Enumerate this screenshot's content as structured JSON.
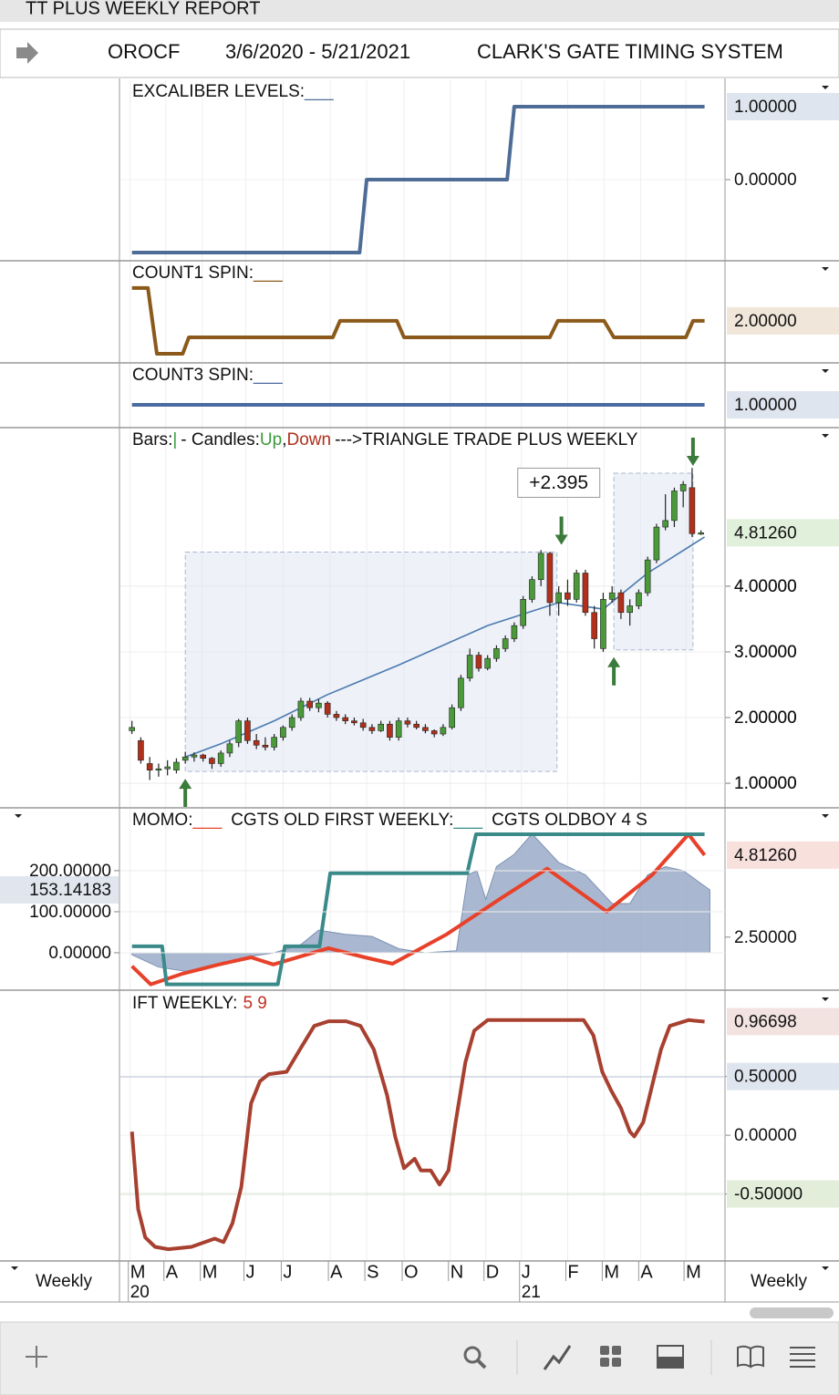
{
  "window_title": "TT PLUS WEEKLY REPORT",
  "header": {
    "symbol": "OROCF",
    "date_range": "3/6/2020 - 5/21/2021",
    "system": "CLARK'S GATE TIMING SYSTEM"
  },
  "time_axis": {
    "period": "Weekly",
    "xlim": [
      -1.3,
      66.7
    ],
    "xticks": [
      {
        "value": -0.2,
        "label": "M"
      },
      {
        "value": 3.8,
        "label": "A"
      },
      {
        "value": 7.9,
        "label": "M"
      },
      {
        "value": 12.8,
        "label": "J"
      },
      {
        "value": 17.0,
        "label": "J"
      },
      {
        "value": 22.3,
        "label": "A"
      },
      {
        "value": 26.4,
        "label": "S"
      },
      {
        "value": 30.6,
        "label": "O"
      },
      {
        "value": 35.8,
        "label": "N"
      },
      {
        "value": 39.8,
        "label": "D"
      },
      {
        "value": 43.8,
        "label": "J"
      },
      {
        "value": 49.0,
        "label": "F"
      },
      {
        "value": 53.1,
        "label": "M"
      },
      {
        "value": 57.2,
        "label": "A"
      },
      {
        "value": 62.3,
        "label": "M"
      }
    ],
    "year_labels": [
      {
        "value": -0.2,
        "label": "20"
      },
      {
        "value": 43.8,
        "label": "21"
      }
    ]
  },
  "chart_data": [
    {
      "type": "line",
      "title": "EXCALIBER LEVELS:",
      "legend_mark": "___",
      "color": "#4e6d96",
      "ylim": [
        -1.1,
        1.3625
      ],
      "yticks": [
        {
          "value": 0,
          "label": "0.00000"
        }
      ],
      "current_value": {
        "value": 1,
        "label": "1.00000"
      },
      "current_color": "#3d5a80",
      "current_bg": "#dfe5ee",
      "series": [
        {
          "name": "EXCALIBER LEVELS",
          "color": "#4e6d96",
          "x": [
            0,
            25.6,
            26.4,
            42.2,
            43.0,
            64.4
          ],
          "values": [
            -1,
            -1,
            0,
            0,
            1,
            1
          ]
        }
      ]
    },
    {
      "type": "line",
      "title": "COUNT1 SPIN:",
      "legend_mark": "___",
      "color": "#8b5a1b",
      "ylim": [
        -0.5,
        5.6
      ],
      "yticks": [],
      "current_value": {
        "value": 2,
        "label": "2.00000"
      },
      "current_color": "#6b4a20",
      "current_bg": "#f1e6da",
      "series": [
        {
          "name": "COUNT1 SPIN",
          "color": "#8b5a1b",
          "x": [
            0,
            1.8,
            2.8,
            5.7,
            6.4,
            22.6,
            23.4,
            29.8,
            30.6,
            47.0,
            47.9,
            53.1,
            54.2,
            62.3,
            63.1,
            64.4
          ],
          "values": [
            4,
            4,
            0,
            0,
            1,
            1,
            2,
            2,
            1,
            1,
            2,
            2,
            1,
            1,
            2,
            2
          ]
        }
      ]
    },
    {
      "type": "line",
      "title": "COUNT3 SPIN:",
      "legend_mark": "___",
      "color": "#4a6aa0",
      "ylim": [
        0.467,
        2.0
      ],
      "yticks": [],
      "current_value": {
        "value": 1,
        "label": "1.00000"
      },
      "current_color": "#3d5a80",
      "current_bg": "#dfe5ee",
      "series": [
        {
          "name": "COUNT3 SPIN",
          "color": "#4a6aa0",
          "x": [
            0,
            64.4
          ],
          "values": [
            1,
            1
          ]
        }
      ]
    },
    {
      "type": "candlestick",
      "title_parts": [
        {
          "text": "Bars:"
        },
        {
          "text": "|",
          "color": "#3a9a3a"
        },
        {
          "text": "- Candles:"
        },
        {
          "text": "Up",
          "color": "#3a9a3a"
        },
        {
          "text": ","
        },
        {
          "text": "Down",
          "color": "#b0301c"
        },
        {
          "text": "--->TRIANGLE TRADE PLUS WEEKLY"
        }
      ],
      "up_color": "#4a9a3a",
      "down_color": "#b0301c",
      "ylim": [
        0.64,
        6.4
      ],
      "yticks": [
        {
          "value": 1,
          "label": "1.00000"
        },
        {
          "value": 2,
          "label": "2.00000"
        },
        {
          "value": 3,
          "label": "3.00000"
        },
        {
          "value": 4,
          "label": "4.00000"
        }
      ],
      "current_value": {
        "value": 4.8126,
        "label": "4.81260"
      },
      "current_color": "#3a7a2a",
      "current_bg": "#e0f0da",
      "x": [
        0,
        1,
        2,
        3,
        4,
        5,
        6,
        7,
        8,
        9,
        10,
        11,
        12,
        13,
        14,
        15,
        16,
        17,
        18,
        19,
        20,
        21,
        22,
        23,
        24,
        25,
        26,
        27,
        28,
        29,
        30,
        31,
        32,
        33,
        34,
        35,
        36,
        37,
        38,
        39,
        40,
        41,
        42,
        43,
        44,
        45,
        46,
        47,
        48,
        49,
        50,
        51,
        52,
        53,
        54,
        55,
        56,
        57,
        58,
        59,
        60,
        61,
        62,
        63,
        64
      ],
      "open": [
        1.8,
        1.65,
        1.3,
        1.2,
        1.22,
        1.2,
        1.35,
        1.4,
        1.43,
        1.38,
        1.3,
        1.46,
        1.62,
        1.95,
        1.65,
        1.58,
        1.55,
        1.7,
        1.85,
        2.0,
        2.25,
        2.15,
        2.22,
        2.05,
        2.0,
        1.95,
        1.92,
        1.85,
        1.8,
        1.9,
        1.7,
        1.95,
        1.9,
        1.85,
        1.8,
        1.75,
        1.85,
        2.15,
        2.6,
        2.95,
        2.75,
        2.9,
        3.05,
        3.2,
        3.4,
        3.8,
        4.1,
        4.5,
        3.75,
        3.9,
        3.8,
        4.2,
        3.6,
        3.05,
        3.8,
        3.9,
        3.6,
        3.7,
        3.9,
        4.4,
        4.9,
        5.0,
        5.45,
        5.5,
        4.8
      ],
      "high": [
        1.95,
        1.7,
        1.4,
        1.3,
        1.35,
        1.38,
        1.48,
        1.47,
        1.45,
        1.4,
        1.5,
        1.65,
        1.98,
        2.0,
        1.75,
        1.7,
        1.75,
        1.88,
        2.05,
        2.3,
        2.3,
        2.28,
        2.25,
        2.1,
        2.05,
        2.0,
        1.98,
        1.9,
        1.95,
        1.95,
        2.0,
        2.0,
        1.95,
        1.9,
        1.82,
        1.9,
        2.2,
        2.65,
        3.05,
        3.0,
        2.95,
        3.1,
        3.25,
        3.45,
        3.85,
        4.15,
        4.55,
        4.52,
        4.0,
        4.1,
        4.25,
        4.25,
        3.7,
        3.9,
        4.0,
        3.95,
        3.8,
        3.95,
        4.45,
        4.95,
        5.4,
        5.5,
        5.6,
        5.8,
        4.85
      ],
      "low": [
        1.75,
        1.3,
        1.05,
        1.1,
        1.12,
        1.15,
        1.3,
        1.33,
        1.33,
        1.22,
        1.25,
        1.4,
        1.55,
        1.6,
        1.52,
        1.5,
        1.5,
        1.65,
        1.8,
        1.95,
        2.1,
        2.08,
        2.0,
        1.95,
        1.9,
        1.88,
        1.8,
        1.75,
        1.78,
        1.65,
        1.65,
        1.85,
        1.82,
        1.76,
        1.7,
        1.72,
        1.82,
        2.1,
        2.55,
        2.7,
        2.72,
        2.85,
        3.0,
        3.15,
        3.35,
        3.75,
        4.0,
        3.55,
        3.55,
        3.7,
        3.75,
        3.55,
        3.05,
        3.0,
        3.75,
        3.5,
        3.4,
        3.65,
        3.85,
        4.35,
        4.85,
        4.9,
        5.2,
        4.75,
        4.78
      ],
      "close": [
        1.85,
        1.35,
        1.2,
        1.22,
        1.25,
        1.32,
        1.4,
        1.43,
        1.38,
        1.3,
        1.46,
        1.6,
        1.95,
        1.65,
        1.58,
        1.55,
        1.7,
        1.85,
        2.0,
        2.25,
        2.15,
        2.22,
        2.05,
        2.0,
        1.95,
        1.92,
        1.85,
        1.8,
        1.9,
        1.7,
        1.95,
        1.9,
        1.85,
        1.8,
        1.75,
        1.85,
        2.15,
        2.6,
        2.95,
        2.75,
        2.9,
        3.05,
        3.2,
        3.4,
        3.8,
        4.1,
        4.5,
        3.75,
        3.9,
        3.8,
        4.2,
        3.6,
        3.2,
        3.8,
        3.9,
        3.6,
        3.7,
        3.9,
        4.4,
        4.9,
        5.0,
        5.45,
        5.55,
        4.8,
        4.8126
      ],
      "moving_average": {
        "color": "#4a7ab0",
        "x": [
          6,
          10,
          16,
          22,
          30,
          40,
          48,
          53,
          58,
          64.4
        ],
        "values": [
          1.4,
          1.6,
          1.95,
          2.35,
          2.8,
          3.4,
          3.75,
          3.65,
          4.2,
          4.75
        ]
      },
      "boxes": [
        {
          "x0": 6.0,
          "x1": 47.8,
          "low": 1.18,
          "high": 4.52
        },
        {
          "x0": 54.2,
          "x1": 63.1,
          "low": 3.03,
          "high": 5.72
        }
      ],
      "annotation": "+2.395",
      "signal_color": "#3a7a3a",
      "signals": [
        {
          "x": 6.0,
          "price": 1.18,
          "direction": "up"
        },
        {
          "x": 48.3,
          "price": 4.52,
          "direction": "down"
        },
        {
          "x": 54.2,
          "price": 3.03,
          "direction": "up"
        },
        {
          "x": 63.1,
          "price": 5.72,
          "direction": "down"
        }
      ]
    },
    {
      "type": "combo",
      "ylim": [
        -89,
        351
      ],
      "yticks": [
        {
          "value": 0,
          "label": "0.00000"
        },
        {
          "value": 100,
          "label": "100.00000"
        },
        {
          "value": 200,
          "label": "200.00000"
        }
      ],
      "current_value_left": 153.14183,
      "y2lim": [
        1.03,
        6.12
      ],
      "y2ticks": [
        {
          "value": 2.5,
          "label": "2.50000"
        }
      ],
      "current_value": {
        "value": 4.8126,
        "label": "4.81260"
      },
      "current_color": "#c03020",
      "current_bg": "#f8e1dd",
      "series": [
        {
          "name": "MOMO:",
          "legend_mark": "___",
          "type": "line",
          "axis": "y2",
          "color": "#e8412a",
          "x": [
            0,
            2.1,
            5.7,
            9.8,
            13.4,
            15.9,
            22.1,
            26.2,
            29.3,
            35.4,
            41.6,
            46.7,
            53.4,
            58.5,
            62.6,
            64.4
          ],
          "values": [
            1.68,
            1.17,
            1.47,
            1.73,
            1.93,
            1.73,
            2.19,
            1.93,
            1.75,
            2.58,
            3.61,
            4.43,
            3.22,
            4.25,
            5.4,
            4.8126
          ]
        },
        {
          "name": "CGTS OLD FIRST WEEKLY:",
          "legend_mark": "___",
          "type": "line",
          "axis": "y2",
          "color": "#3a8a8a",
          "x": [
            0,
            3.4,
            3.9,
            16.4,
            17.2,
            21.1,
            22.3,
            37.7,
            38.7,
            64.4
          ],
          "values": [
            2.24,
            2.24,
            1.17,
            1.17,
            2.24,
            2.24,
            4.3,
            4.3,
            5.4,
            5.4
          ]
        },
        {
          "name": "CGTS OLDBOY 4 S",
          "type": "area",
          "color": "#9aacc8",
          "x": [
            0,
            3,
            6,
            10,
            13,
            16,
            19,
            21,
            24,
            27,
            30,
            33,
            36.5,
            37.8,
            38.8,
            39.8,
            41,
            43,
            45,
            48,
            51,
            54,
            56,
            58,
            60,
            62,
            65
          ],
          "values": [
            -5,
            -35,
            -45,
            -30,
            -10,
            0,
            20,
            55,
            45,
            40,
            10,
            0,
            5,
            190,
            200,
            130,
            210,
            240,
            290,
            220,
            190,
            120,
            120,
            190,
            210,
            200,
            153.14183
          ]
        }
      ]
    },
    {
      "type": "line",
      "title": "IFT WEEKLY:",
      "parameters": "5 9",
      "parameters_color": "#c03020",
      "ylim": [
        -1.0625,
        1.219
      ],
      "yticks": [
        {
          "value": 0.5,
          "label": "0.50000"
        },
        {
          "value": 0,
          "label": "0.00000"
        },
        {
          "value": -0.5,
          "label": "-0.50000"
        }
      ],
      "reference_lines": [
        {
          "value": 0.5,
          "color": "#3f5f9f",
          "bg": "#dfe5ee"
        },
        {
          "value": -0.5,
          "color": "#5f8f3f",
          "bg": "#e2eeda"
        }
      ],
      "current_value": {
        "value": 0.96698,
        "label": "0.96698"
      },
      "current_color": "#8a2a20",
      "current_bg": "#f2e3e1",
      "series": [
        {
          "name": "IFT WEEKLY",
          "color": "#a84030",
          "x": [
            0,
            0.7,
            1.5,
            2.6,
            4.1,
            6.7,
            9.3,
            10.3,
            11.3,
            12.3,
            13.4,
            14.4,
            15.4,
            17.4,
            18.9,
            20.5,
            22.1,
            24.1,
            25.7,
            27.2,
            28.7,
            29.6,
            30.6,
            31.8,
            32.5,
            33.6,
            34.6,
            35.6,
            36.4,
            37.5,
            38.5,
            40.0,
            42.6,
            50.8,
            51.9,
            52.9,
            53.9,
            55.0,
            56.0,
            56.5,
            57.5,
            58.5,
            59.5,
            60.5,
            62.6,
            64.4
          ],
          "values": [
            0.03,
            -0.63,
            -0.87,
            -0.95,
            -0.97,
            -0.95,
            -0.88,
            -0.91,
            -0.75,
            -0.44,
            0.27,
            0.46,
            0.52,
            0.54,
            0.73,
            0.93,
            0.97,
            0.97,
            0.93,
            0.73,
            0.34,
            -0.01,
            -0.28,
            -0.2,
            -0.3,
            -0.3,
            -0.42,
            -0.3,
            0.11,
            0.62,
            0.89,
            0.98,
            0.98,
            0.98,
            0.85,
            0.54,
            0.38,
            0.23,
            0.03,
            -0.01,
            0.11,
            0.42,
            0.73,
            0.93,
            0.98,
            0.96698
          ]
        }
      ]
    }
  ]
}
